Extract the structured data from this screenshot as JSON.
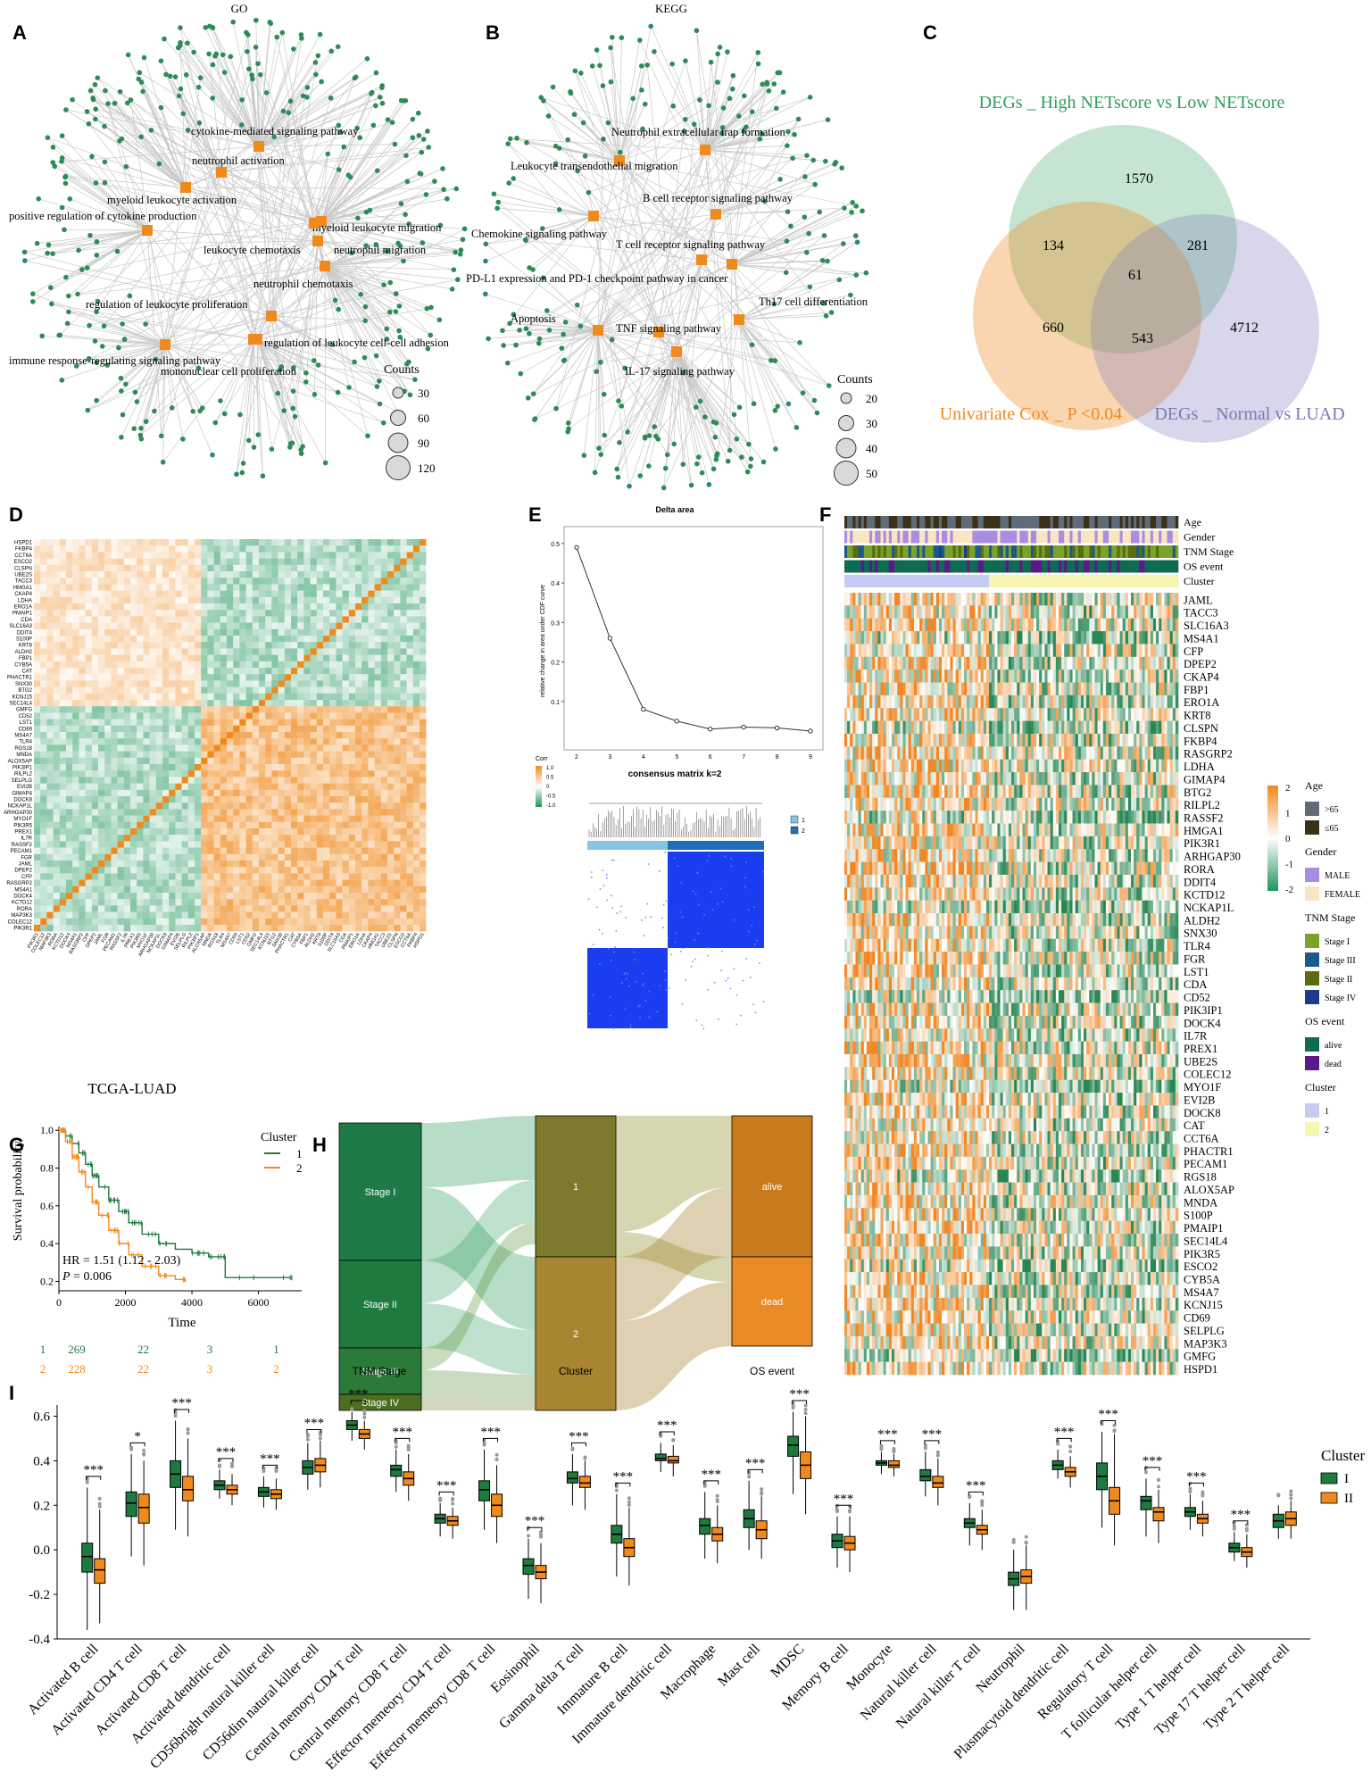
{
  "panels": {
    "A": {
      "letter": "A",
      "title": "GO",
      "legend_title": "Counts",
      "legend_values": [
        "30",
        "60",
        "90",
        "120"
      ],
      "terms": [
        "cytokine-mediated signaling pathway",
        "neutrophil activation",
        "myeloid leukocyte activation",
        "positive regulation of cytokine production",
        "myeloid leukocyte migration",
        "leukocyte chemotaxis",
        "neutrophil migration",
        "neutrophil chemotaxis",
        "regulation of leukocyte proliferation",
        "regulation of leukocyte cell-cell adhesion",
        "immune response-regulating signaling pathway",
        "mononuclear cell proliferation"
      ]
    },
    "B": {
      "letter": "B",
      "title": "KEGG",
      "legend_title": "Counts",
      "legend_values": [
        "20",
        "30",
        "40",
        "50"
      ],
      "terms": [
        "Neutrophil extracellular trap formation",
        "Leukocyte transendothelial migration",
        "B cell receptor signaling pathway",
        "Chemokine signaling pathway",
        "T cell receptor signaling pathway",
        "PD-L1 expression and PD-1 checkpoint pathway in cancer",
        "Th17 cell differentiation",
        "Apoptosis",
        "TNF signaling pathway",
        "IL-17 signaling pathway"
      ]
    },
    "C": {
      "letter": "C",
      "sets": [
        {
          "name": "DEGs _ High NETscore vs Low NETscore",
          "color": "#2e9e5b"
        },
        {
          "name": "Univariate Cox _ P <0.04",
          "color": "#f08a1c"
        },
        {
          "name": "DEGs _ Normal vs LUAD",
          "color": "#7b78b8"
        }
      ],
      "counts": {
        "high_only": "1570",
        "cox_only": "660",
        "normal_only": "4712",
        "high_cox": "134",
        "high_normal": "281",
        "cox_normal": "543",
        "all": "61"
      }
    },
    "D": {
      "letter": "D",
      "genes": [
        "HSPD1",
        "FKBP4",
        "CCT6A",
        "ESCO2",
        "CLSPN",
        "UBE2S",
        "TACC3",
        "HMGA1",
        "CKAP4",
        "LDHA",
        "ERO1A",
        "PMAIP1",
        "CDA",
        "SLC16A3",
        "DDIT4",
        "S100P",
        "KRT8",
        "ALDH2",
        "FBP1",
        "CYB5A",
        "CAT",
        "PHACTR1",
        "SNX30",
        "BTG2",
        "KCNJ15",
        "SEC14L4",
        "GMFG",
        "CD52",
        "LST1",
        "CD69",
        "MS4A7",
        "TLR4",
        "RGS18",
        "MNDA",
        "ALOX5AP",
        "PIK3IP1",
        "RILPL2",
        "SELPLG",
        "EVI2B",
        "GIMAP4",
        "DOCK8",
        "NCKAP1L",
        "ARHGAP30",
        "MYO1F",
        "PIK3R5",
        "PREX1",
        "IL7R",
        "RASSF2",
        "PECAM1",
        "FGR",
        "JAML",
        "DPEP2",
        "CFP",
        "RASGRP2",
        "MS4A1",
        "DOCK4",
        "KCTD12",
        "RORA",
        "MAP3K3",
        "COLEC12",
        "PIK3R1"
      ],
      "legend_title": "Corr",
      "legend_ticks": [
        "1.0",
        "0.5",
        "0",
        "-0.5",
        "-1.0"
      ]
    },
    "E": {
      "letter": "E",
      "delta_title": "Delta area",
      "delta_ylabel": "relative change in area under CDF curve",
      "consensus_title": "consensus matrix k=2",
      "consensus_legend": [
        "1",
        "2"
      ],
      "chart_data": {
        "type": "line",
        "title": "Delta area",
        "ylabel": "relative change in area under CDF curve",
        "x": [
          2,
          3,
          4,
          5,
          6,
          7,
          8,
          9
        ],
        "y": [
          0.49,
          0.26,
          0.08,
          0.05,
          0.03,
          0.035,
          0.033,
          0.025
        ],
        "ylim": [
          0.0,
          0.52
        ],
        "yticks": [
          0.1,
          0.2,
          0.3,
          0.4,
          0.5
        ],
        "xticks": [
          2,
          3,
          4,
          5,
          6,
          7,
          8,
          9
        ]
      }
    },
    "F": {
      "letter": "F",
      "track_labels": [
        "Age",
        "Gender",
        "TNM Stage",
        "OS event",
        "Cluster"
      ],
      "genes": [
        "JAML",
        "TACC3",
        "SLC16A3",
        "MS4A1",
        "CFP",
        "DPEP2",
        "CKAP4",
        "FBP1",
        "ERO1A",
        "KRT8",
        "CLSPN",
        "FKBP4",
        "RASGRP2",
        "LDHA",
        "GIMAP4",
        "BTG2",
        "RILPL2",
        "RASSF2",
        "HMGA1",
        "PIK3R1",
        "ARHGAP30",
        "RORA",
        "DDIT4",
        "KCTD12",
        "NCKAP1L",
        "ALDH2",
        "SNX30",
        "TLR4",
        "FGR",
        "LST1",
        "CDA",
        "CD52",
        "PIK3IP1",
        "DOCK4",
        "IL7R",
        "PREX1",
        "UBE2S",
        "COLEC12",
        "MYO1F",
        "EVI2B",
        "DOCK8",
        "CAT",
        "CCT6A",
        "PHACTR1",
        "PECAM1",
        "RGS18",
        "ALOX5AP",
        "MNDA",
        "S100P",
        "PMAIP1",
        "SEC14L4",
        "PIK3R5",
        "ESCO2",
        "CYB5A",
        "MS4A7",
        "KCNJ15",
        "CD69",
        "SELPLG",
        "MAP3K3",
        "GMFG",
        "HSPD1"
      ],
      "scale_ticks": [
        "2",
        "1",
        "0",
        "-1",
        "-2"
      ],
      "legend": [
        {
          "title": "Age",
          "items": [
            {
              "label": ">65",
              "color": "#5f6b78"
            },
            {
              "label": "≤65",
              "color": "#3c3118"
            }
          ]
        },
        {
          "title": "Gender",
          "items": [
            {
              "label": "MALE",
              "color": "#a98de3"
            },
            {
              "label": "FEMALE",
              "color": "#f8e6c2"
            }
          ]
        },
        {
          "title": "TNM Stage",
          "items": [
            {
              "label": "Stage I",
              "color": "#7aa32a"
            },
            {
              "label": "Stage III",
              "color": "#1a5a8a"
            },
            {
              "label": "Stage II",
              "color": "#5b6b12"
            },
            {
              "label": "Stage IV",
              "color": "#1d3a8c"
            }
          ]
        },
        {
          "title": "OS event",
          "items": [
            {
              "label": "alive",
              "color": "#0e6b51"
            },
            {
              "label": "dead",
              "color": "#5a1889"
            }
          ]
        },
        {
          "title": "Cluster",
          "items": [
            {
              "label": "1",
              "color": "#c6cbf4"
            },
            {
              "label": "2",
              "color": "#f7f5b0"
            }
          ]
        }
      ]
    },
    "G": {
      "letter": "G",
      "title": "TCGA-LUAD",
      "legend_title": "Cluster",
      "legend_items": [
        "1",
        "2"
      ],
      "ylabel": "Survival probability",
      "xlabel": "Time",
      "hr_text": "HR = 1.51  (1.12 - 2.03)",
      "p_label": "P",
      "p_text": " = 0.006",
      "risk_rows": [
        {
          "label": "1",
          "values": [
            "269",
            "22",
            "3",
            "1"
          ]
        },
        {
          "label": "2",
          "values": [
            "228",
            "22",
            "3",
            "2"
          ]
        }
      ],
      "chart_data": {
        "type": "line",
        "title": "TCGA-LUAD",
        "xlabel": "Time",
        "ylabel": "Survival probability",
        "xlim": [
          0,
          7300
        ],
        "ylim": [
          0.15,
          1.02
        ],
        "xticks": [
          0,
          2000,
          4000,
          6000
        ],
        "yticks": [
          0.2,
          0.4,
          0.6,
          0.8,
          1.0
        ],
        "series": [
          {
            "name": "1",
            "color": "#1f7a3f",
            "x": [
              0,
              200,
              400,
              600,
              800,
              1000,
              1200,
              1500,
              1800,
              2100,
              2500,
              3000,
              3500,
              4000,
              4500,
              4950,
              5000,
              6000,
              7000
            ],
            "y": [
              1.0,
              0.97,
              0.93,
              0.88,
              0.82,
              0.76,
              0.7,
              0.63,
              0.57,
              0.51,
              0.45,
              0.4,
              0.37,
              0.35,
              0.33,
              0.33,
              0.22,
              0.22,
              0.21
            ]
          },
          {
            "name": "2",
            "color": "#f08a1c",
            "x": [
              0,
              200,
              400,
              600,
              800,
              1000,
              1200,
              1500,
              1800,
              2100,
              2500,
              3000,
              3500,
              3800
            ],
            "y": [
              1.0,
              0.94,
              0.86,
              0.78,
              0.7,
              0.62,
              0.55,
              0.47,
              0.4,
              0.34,
              0.28,
              0.23,
              0.21,
              0.2
            ]
          }
        ]
      }
    },
    "H": {
      "letter": "H",
      "axis_labels": [
        "TNM Stage",
        "Cluster",
        "OS event"
      ],
      "nodes": {
        "stage": [
          "Stage I",
          "Stage II",
          "Stage III",
          "Stage IV"
        ],
        "cluster": [
          "1",
          "2"
        ],
        "os": [
          "alive",
          "dead"
        ]
      }
    },
    "I": {
      "letter": "I",
      "legend_title": "Cluster",
      "legend_items": [
        "I",
        "II"
      ],
      "chart_data": {
        "type": "box",
        "ylim": [
          -0.4,
          0.65
        ],
        "yticks": [
          -0.4,
          -0.2,
          0.0,
          0.2,
          0.4,
          0.6
        ],
        "categories": [
          "Activated B cell",
          "Activated CD4 T cell",
          "Activated CD8 T cell",
          "Activated dendritic cell",
          "CD56bright natural killer cell",
          "CD56dim natural killer cell",
          "Central memory CD4 T cell",
          "Central memory CD8 T cell",
          "Effector memeory CD4 T cell",
          "Effector memeory CD8 T cell",
          "Eosinophil",
          "Gamma delta T cell",
          "Immature B cell",
          "Immature dendritic cell",
          "Macrophage",
          "Mast cell",
          "MDSC",
          "Memory B cell",
          "Monocyte",
          "Natural killer cell",
          "Natural killer T cell",
          "Neutrophil",
          "Plasmacytoid dendritic cell",
          "Regulatory T cell",
          "T follicular helper cell",
          "Type 1 T helper cell",
          "Type 17 T helper cell",
          "Type 2 T helper cell"
        ],
        "significance": [
          "***",
          "*",
          "***",
          "***",
          "***",
          "***",
          "***",
          "***",
          "***",
          "***",
          "***",
          "***",
          "***",
          "***",
          "***",
          "***",
          "***",
          "***",
          "***",
          "***",
          "***",
          "",
          "***",
          "***",
          "***",
          "***",
          "***",
          ""
        ],
        "series": [
          {
            "name": "I",
            "color": "#1f7a3f",
            "medians": [
              -0.03,
              0.21,
              0.34,
              0.29,
              0.26,
              0.37,
              0.56,
              0.36,
              0.14,
              0.27,
              -0.07,
              0.32,
              0.07,
              0.41,
              0.11,
              0.14,
              0.47,
              0.04,
              0.39,
              0.33,
              0.12,
              -0.13,
              0.38,
              0.33,
              0.22,
              0.17,
              0.01,
              0.13
            ],
            "q1": [
              -0.1,
              0.15,
              0.28,
              0.27,
              0.24,
              0.34,
              0.54,
              0.33,
              0.12,
              0.22,
              -0.11,
              0.3,
              0.03,
              0.4,
              0.07,
              0.1,
              0.42,
              0.01,
              0.38,
              0.31,
              0.1,
              -0.16,
              0.36,
              0.27,
              0.18,
              0.15,
              -0.01,
              0.1
            ],
            "q3": [
              0.03,
              0.26,
              0.4,
              0.31,
              0.28,
              0.4,
              0.58,
              0.38,
              0.16,
              0.31,
              -0.04,
              0.35,
              0.11,
              0.43,
              0.14,
              0.18,
              0.51,
              0.07,
              0.4,
              0.36,
              0.14,
              -0.1,
              0.4,
              0.39,
              0.24,
              0.19,
              0.03,
              0.16
            ],
            "lo": [
              -0.36,
              -0.03,
              0.09,
              0.23,
              0.19,
              0.27,
              0.49,
              0.26,
              0.06,
              0.09,
              -0.22,
              0.2,
              -0.12,
              0.35,
              -0.04,
              0.0,
              0.25,
              -0.08,
              0.34,
              0.24,
              0.02,
              -0.27,
              0.32,
              0.1,
              0.06,
              0.09,
              -0.05,
              0.05
            ],
            "hi": [
              0.28,
              0.43,
              0.58,
              0.36,
              0.33,
              0.48,
              0.62,
              0.45,
              0.21,
              0.45,
              0.05,
              0.43,
              0.25,
              0.48,
              0.26,
              0.31,
              0.62,
              0.15,
              0.44,
              0.44,
              0.21,
              0.0,
              0.45,
              0.53,
              0.32,
              0.25,
              0.08,
              0.2
            ]
          },
          {
            "name": "II",
            "color": "#f08a1c",
            "medians": [
              -0.09,
              0.19,
              0.27,
              0.27,
              0.25,
              0.38,
              0.52,
              0.32,
              0.13,
              0.2,
              -0.1,
              0.3,
              0.01,
              0.4,
              0.07,
              0.09,
              0.38,
              0.03,
              0.38,
              0.3,
              0.09,
              -0.12,
              0.35,
              0.22,
              0.17,
              0.14,
              -0.01,
              0.14
            ],
            "q1": [
              -0.15,
              0.12,
              0.22,
              0.25,
              0.23,
              0.35,
              0.5,
              0.29,
              0.11,
              0.15,
              -0.13,
              0.28,
              -0.03,
              0.39,
              0.04,
              0.05,
              0.32,
              0.0,
              0.37,
              0.28,
              0.07,
              -0.15,
              0.33,
              0.16,
              0.13,
              0.12,
              -0.03,
              0.11
            ],
            "q3": [
              -0.04,
              0.25,
              0.33,
              0.29,
              0.27,
              0.41,
              0.54,
              0.35,
              0.15,
              0.25,
              -0.07,
              0.33,
              0.05,
              0.42,
              0.1,
              0.13,
              0.44,
              0.06,
              0.4,
              0.33,
              0.11,
              -0.09,
              0.37,
              0.28,
              0.19,
              0.16,
              0.01,
              0.17
            ],
            "lo": [
              -0.33,
              -0.07,
              0.06,
              0.2,
              0.18,
              0.28,
              0.45,
              0.22,
              0.05,
              0.03,
              -0.24,
              0.18,
              -0.16,
              0.33,
              -0.06,
              -0.04,
              0.16,
              -0.1,
              0.33,
              0.2,
              0.0,
              -0.27,
              0.28,
              0.02,
              0.03,
              0.06,
              -0.08,
              0.05
            ],
            "hi": [
              0.18,
              0.4,
              0.5,
              0.34,
              0.32,
              0.49,
              0.58,
              0.43,
              0.19,
              0.38,
              0.03,
              0.4,
              0.19,
              0.47,
              0.2,
              0.24,
              0.6,
              0.15,
              0.43,
              0.41,
              0.18,
              0.02,
              0.42,
              0.52,
              0.27,
              0.22,
              0.07,
              0.22
            ]
          }
        ]
      }
    }
  },
  "colors": {
    "orange": "#f08a1c",
    "green": "#1f7a3f",
    "node_green": "#2e8b57",
    "edge_gray": "#c9c9c9"
  }
}
